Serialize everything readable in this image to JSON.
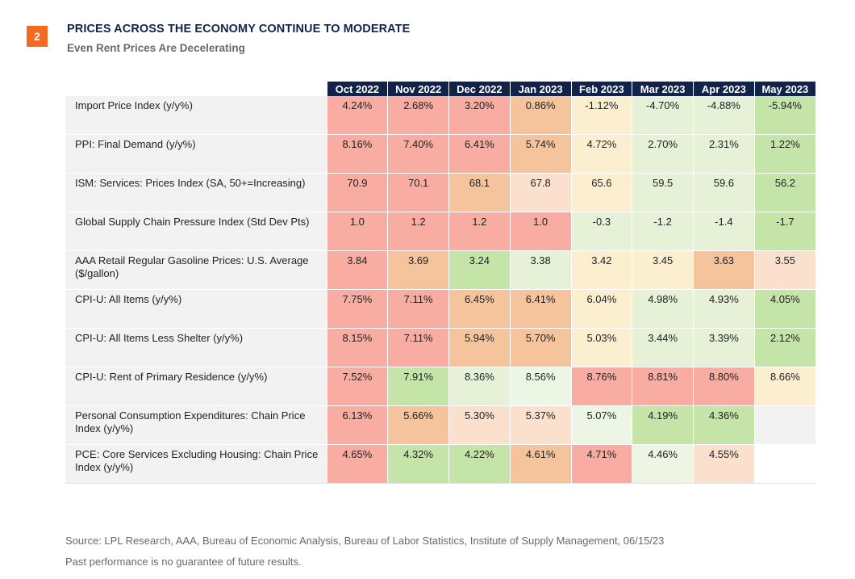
{
  "figure_number": "2",
  "title": "PRICES ACROSS THE ECONOMY CONTINUE TO MODERATE",
  "subtitle": "Even Rent Prices Are Decelerating",
  "columns": [
    "Oct 2022",
    "Nov 2022",
    "Dec 2022",
    "Jan 2023",
    "Feb 2023",
    "Mar 2023",
    "Apr 2023",
    "May 2023"
  ],
  "rows": [
    {
      "label": "Import Price Index (y/y%)",
      "values": [
        "4.24%",
        "2.68%",
        "3.20%",
        "0.86%",
        "-1.12%",
        "-4.70%",
        "-4.88%",
        "-5.94%"
      ],
      "colors": [
        "#f9aca1",
        "#f9aca1",
        "#f9aca1",
        "#f5c49c",
        "#fbefd0",
        "#e6f1d8",
        "#e6f1d8",
        "#c5e4a8"
      ]
    },
    {
      "label": "PPI: Final Demand (y/y%)",
      "values": [
        "8.16%",
        "7.40%",
        "6.41%",
        "5.74%",
        "4.72%",
        "2.70%",
        "2.31%",
        "1.22%"
      ],
      "colors": [
        "#f9aca1",
        "#f9aca1",
        "#f9aca1",
        "#f5c49c",
        "#fbefd0",
        "#e6f1d8",
        "#e6f1d8",
        "#c5e4a8"
      ]
    },
    {
      "label": "ISM: Services: Prices Index (SA, 50+=Increasing)",
      "values": [
        "70.9",
        "70.1",
        "68.1",
        "67.8",
        "65.6",
        "59.5",
        "59.6",
        "56.2"
      ],
      "colors": [
        "#f9aca1",
        "#f9aca1",
        "#f5c49c",
        "#fbe1cd",
        "#fbefd0",
        "#e6f1d8",
        "#e6f1d8",
        "#c5e4a8"
      ]
    },
    {
      "label": "Global Supply Chain Pressure Index (Std Dev Pts)",
      "values": [
        "1.0",
        "1.2",
        "1.2",
        "1.0",
        "-0.3",
        "-1.2",
        "-1.4",
        "-1.7"
      ],
      "colors": [
        "#f9aca1",
        "#f9aca1",
        "#f9aca1",
        "#f9aca1",
        "#e6f1d8",
        "#e6f1d8",
        "#e6f1d8",
        "#c5e4a8"
      ]
    },
    {
      "label": "AAA Retail Regular Gasoline Prices: U.S. Average ($/gallon)",
      "values": [
        "3.84",
        "3.69",
        "3.24",
        "3.38",
        "3.42",
        "3.45",
        "3.63",
        "3.55"
      ],
      "colors": [
        "#f9aca1",
        "#f5c49c",
        "#c5e4a8",
        "#e6f1d8",
        "#fbefd0",
        "#fbefd0",
        "#f5c49c",
        "#fbe1cd"
      ]
    },
    {
      "label": "CPI-U: All Items (y/y%)",
      "values": [
        "7.75%",
        "7.11%",
        "6.45%",
        "6.41%",
        "6.04%",
        "4.98%",
        "4.93%",
        "4.05%"
      ],
      "colors": [
        "#f9aca1",
        "#f9aca1",
        "#f5c49c",
        "#f5c49c",
        "#fbefd0",
        "#e6f1d8",
        "#e6f1d8",
        "#c5e4a8"
      ]
    },
    {
      "label": "CPI-U: All Items Less Shelter (y/y%)",
      "values": [
        "8.15%",
        "7.11%",
        "5.94%",
        "5.70%",
        "5.03%",
        "3.44%",
        "3.39%",
        "2.12%"
      ],
      "colors": [
        "#f9aca1",
        "#f9aca1",
        "#f5c49c",
        "#f5c49c",
        "#fbefd0",
        "#e6f1d8",
        "#e6f1d8",
        "#c5e4a8"
      ]
    },
    {
      "label": "CPI-U: Rent of Primary Residence (y/y%)",
      "values": [
        "7.52%",
        "7.91%",
        "8.36%",
        "8.56%",
        "8.76%",
        "8.81%",
        "8.80%",
        "8.66%"
      ],
      "colors": [
        "#f9aca1",
        "#c5e4a8",
        "#e6f1d8",
        "#edf5e5",
        "#f9aca1",
        "#f9aca1",
        "#f9aca1",
        "#fbefd0"
      ]
    },
    {
      "label": "Personal Consumption Expenditures: Chain Price Index (y/y%)",
      "values": [
        "6.13%",
        "5.66%",
        "5.30%",
        "5.37%",
        "5.07%",
        "4.19%",
        "4.36%",
        ""
      ],
      "colors": [
        "#f9aca1",
        "#f5c49c",
        "#fbe1cd",
        "#fbe1cd",
        "#edf5e5",
        "#c5e4a8",
        "#c5e4a8",
        "#f2f2f2"
      ]
    },
    {
      "label": "PCE: Core Services Excluding Housing: Chain Price Index (y/y%)",
      "values": [
        "4.65%",
        "4.32%",
        "4.22%",
        "4.61%",
        "4.71%",
        "4.46%",
        "4.55%",
        ""
      ],
      "colors": [
        "#f9aca1",
        "#c5e4a8",
        "#c5e4a8",
        "#f5c49c",
        "#f9aca1",
        "#edf5e5",
        "#fbe1cd",
        "#ffffff"
      ]
    }
  ],
  "source": "Source: LPL Research, AAA, Bureau of Economic Analysis, Bureau of Labor Statistics, Institute of Supply Management, 06/15/23",
  "disclaimer": "Past performance is no guarantee of future results.",
  "colors": {
    "badge": "#f26b21",
    "header_bg": "#12234b",
    "label_bg": "#f2f2f2"
  }
}
